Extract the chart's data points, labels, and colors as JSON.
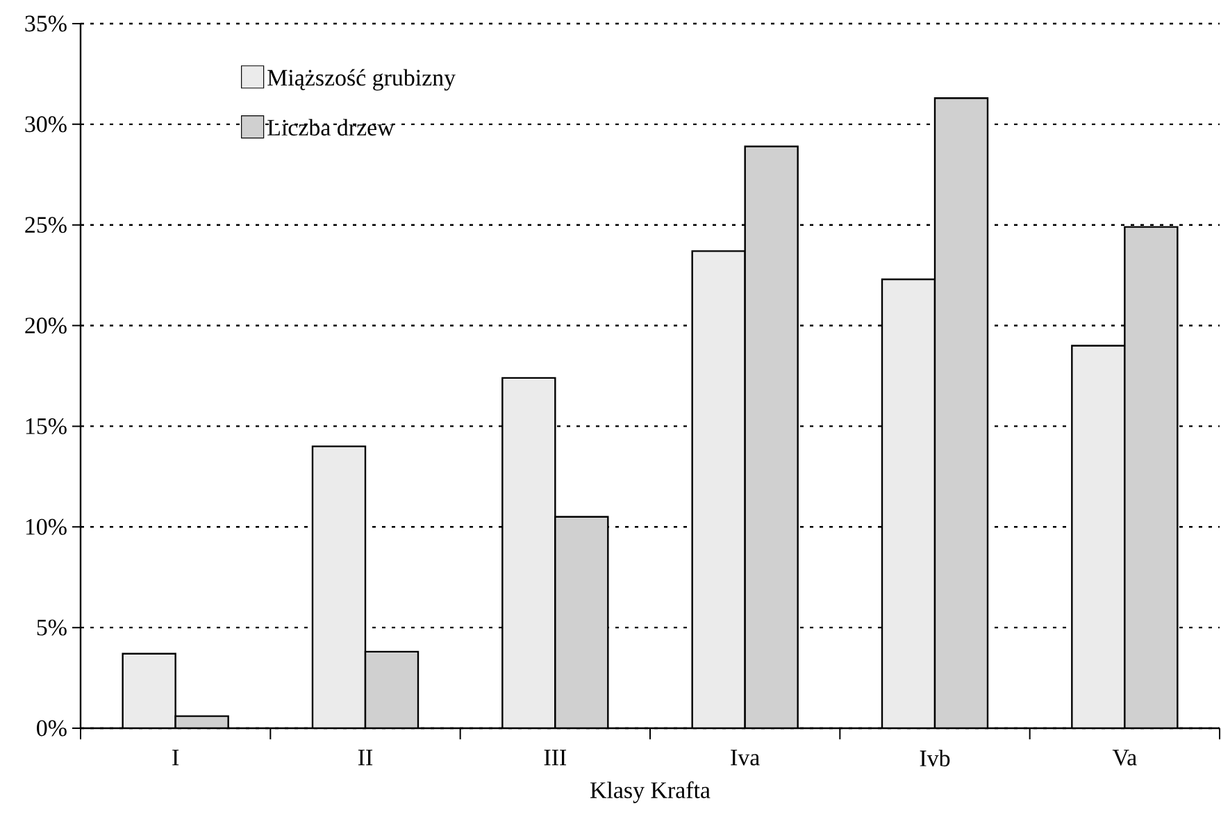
{
  "chart_data": {
    "type": "bar",
    "xlabel": "Klasy Krafta",
    "categories": [
      "I",
      "II",
      "III",
      "Iva",
      "Ivb",
      "Va"
    ],
    "series": [
      {
        "name": "Miąższość grubizny",
        "color": "#ebebeb",
        "values": [
          3.7,
          14.0,
          17.4,
          23.7,
          22.3,
          19.0
        ]
      },
      {
        "name": "Liczba drzew",
        "color": "#d0d0d0",
        "values": [
          0.6,
          3.8,
          10.5,
          28.9,
          31.3,
          24.9
        ]
      }
    ],
    "ylim": [
      0,
      35
    ],
    "yticks": [
      {
        "value": 0,
        "label": "0%"
      },
      {
        "value": 5,
        "label": "5%"
      },
      {
        "value": 10,
        "label": "10%"
      },
      {
        "value": 15,
        "label": "15%"
      },
      {
        "value": 20,
        "label": "20%"
      },
      {
        "value": 25,
        "label": "25%"
      },
      {
        "value": 30,
        "label": "30%"
      },
      {
        "value": 35,
        "label": "35%"
      }
    ],
    "grid": "y",
    "legend": "top left"
  }
}
